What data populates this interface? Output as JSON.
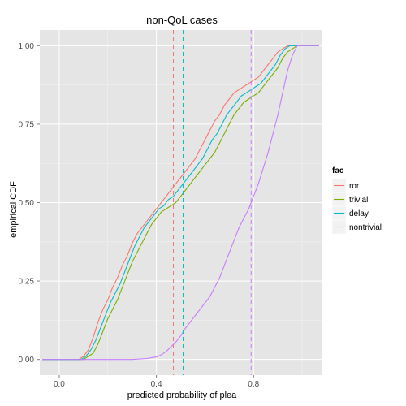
{
  "chart_data": {
    "type": "line",
    "title": "non-QoL cases",
    "xlabel": "predicted probability of plea",
    "ylabel": "empirical CDF",
    "xlim": [
      -0.08,
      1.08
    ],
    "ylim": [
      -0.05,
      1.05
    ],
    "x_ticks": [
      0.0,
      0.4,
      0.8
    ],
    "x_tick_labels": [
      "0.0",
      "0.4",
      "0.8"
    ],
    "y_ticks": [
      0.0,
      0.25,
      0.5,
      0.75,
      1.0
    ],
    "y_tick_labels": [
      "0.00",
      "0.25",
      "0.50",
      "0.75",
      "1.00"
    ],
    "grid": true,
    "legend_title": "fac",
    "legend_position": "right",
    "background": "#e5e5e5",
    "series": [
      {
        "name": "ror",
        "color": "#f8766d",
        "mean": 0.47,
        "points": [
          [
            -0.07,
            0
          ],
          [
            0.08,
            0
          ],
          [
            0.1,
            0.01
          ],
          [
            0.12,
            0.03
          ],
          [
            0.14,
            0.07
          ],
          [
            0.16,
            0.12
          ],
          [
            0.18,
            0.16
          ],
          [
            0.2,
            0.19
          ],
          [
            0.22,
            0.23
          ],
          [
            0.24,
            0.26
          ],
          [
            0.26,
            0.3
          ],
          [
            0.28,
            0.33
          ],
          [
            0.3,
            0.37
          ],
          [
            0.32,
            0.4
          ],
          [
            0.34,
            0.42
          ],
          [
            0.36,
            0.44
          ],
          [
            0.38,
            0.46
          ],
          [
            0.4,
            0.48
          ],
          [
            0.42,
            0.5
          ],
          [
            0.44,
            0.52
          ],
          [
            0.46,
            0.54
          ],
          [
            0.48,
            0.56
          ],
          [
            0.5,
            0.58
          ],
          [
            0.52,
            0.6
          ],
          [
            0.54,
            0.62
          ],
          [
            0.56,
            0.64
          ],
          [
            0.58,
            0.67
          ],
          [
            0.6,
            0.7
          ],
          [
            0.62,
            0.73
          ],
          [
            0.64,
            0.76
          ],
          [
            0.66,
            0.78
          ],
          [
            0.68,
            0.81
          ],
          [
            0.7,
            0.83
          ],
          [
            0.72,
            0.85
          ],
          [
            0.74,
            0.86
          ],
          [
            0.76,
            0.87
          ],
          [
            0.78,
            0.88
          ],
          [
            0.8,
            0.89
          ],
          [
            0.82,
            0.9
          ],
          [
            0.84,
            0.92
          ],
          [
            0.86,
            0.94
          ],
          [
            0.88,
            0.96
          ],
          [
            0.9,
            0.98
          ],
          [
            0.92,
            0.99
          ],
          [
            0.94,
            1
          ],
          [
            1.07,
            1
          ]
        ]
      },
      {
        "name": "trivial",
        "color": "#7cae00",
        "mean": 0.53,
        "points": [
          [
            -0.07,
            0
          ],
          [
            0.1,
            0
          ],
          [
            0.12,
            0.01
          ],
          [
            0.14,
            0.02
          ],
          [
            0.16,
            0.05
          ],
          [
            0.18,
            0.09
          ],
          [
            0.2,
            0.13
          ],
          [
            0.22,
            0.16
          ],
          [
            0.24,
            0.19
          ],
          [
            0.26,
            0.23
          ],
          [
            0.28,
            0.27
          ],
          [
            0.3,
            0.31
          ],
          [
            0.32,
            0.34
          ],
          [
            0.34,
            0.37
          ],
          [
            0.36,
            0.4
          ],
          [
            0.38,
            0.43
          ],
          [
            0.4,
            0.45
          ],
          [
            0.42,
            0.47
          ],
          [
            0.44,
            0.48
          ],
          [
            0.46,
            0.49
          ],
          [
            0.48,
            0.5
          ],
          [
            0.5,
            0.52
          ],
          [
            0.52,
            0.54
          ],
          [
            0.54,
            0.56
          ],
          [
            0.56,
            0.58
          ],
          [
            0.58,
            0.6
          ],
          [
            0.6,
            0.62
          ],
          [
            0.62,
            0.64
          ],
          [
            0.64,
            0.66
          ],
          [
            0.66,
            0.69
          ],
          [
            0.68,
            0.72
          ],
          [
            0.7,
            0.75
          ],
          [
            0.72,
            0.78
          ],
          [
            0.74,
            0.8
          ],
          [
            0.76,
            0.82
          ],
          [
            0.78,
            0.83
          ],
          [
            0.8,
            0.84
          ],
          [
            0.82,
            0.85
          ],
          [
            0.84,
            0.87
          ],
          [
            0.86,
            0.89
          ],
          [
            0.88,
            0.91
          ],
          [
            0.9,
            0.93
          ],
          [
            0.92,
            0.96
          ],
          [
            0.94,
            0.98
          ],
          [
            0.96,
            0.99
          ],
          [
            0.98,
            1
          ],
          [
            1.07,
            1
          ]
        ]
      },
      {
        "name": "delay",
        "color": "#00bfc4",
        "mean": 0.51,
        "points": [
          [
            -0.07,
            0
          ],
          [
            0.09,
            0
          ],
          [
            0.11,
            0.01
          ],
          [
            0.13,
            0.03
          ],
          [
            0.15,
            0.06
          ],
          [
            0.17,
            0.1
          ],
          [
            0.19,
            0.14
          ],
          [
            0.21,
            0.18
          ],
          [
            0.23,
            0.21
          ],
          [
            0.25,
            0.24
          ],
          [
            0.27,
            0.28
          ],
          [
            0.29,
            0.32
          ],
          [
            0.31,
            0.36
          ],
          [
            0.33,
            0.39
          ],
          [
            0.35,
            0.42
          ],
          [
            0.37,
            0.44
          ],
          [
            0.39,
            0.46
          ],
          [
            0.41,
            0.48
          ],
          [
            0.43,
            0.49
          ],
          [
            0.45,
            0.51
          ],
          [
            0.47,
            0.52
          ],
          [
            0.49,
            0.54
          ],
          [
            0.51,
            0.56
          ],
          [
            0.53,
            0.58
          ],
          [
            0.55,
            0.6
          ],
          [
            0.57,
            0.62
          ],
          [
            0.59,
            0.64
          ],
          [
            0.61,
            0.67
          ],
          [
            0.63,
            0.7
          ],
          [
            0.65,
            0.72
          ],
          [
            0.67,
            0.75
          ],
          [
            0.69,
            0.78
          ],
          [
            0.71,
            0.8
          ],
          [
            0.73,
            0.82
          ],
          [
            0.75,
            0.84
          ],
          [
            0.77,
            0.85
          ],
          [
            0.79,
            0.86
          ],
          [
            0.81,
            0.87
          ],
          [
            0.83,
            0.88
          ],
          [
            0.85,
            0.9
          ],
          [
            0.87,
            0.92
          ],
          [
            0.89,
            0.94
          ],
          [
            0.91,
            0.97
          ],
          [
            0.93,
            0.99
          ],
          [
            0.95,
            1
          ],
          [
            1.07,
            1
          ]
        ]
      },
      {
        "name": "nontrivial",
        "color": "#c77cff",
        "mean": 0.79,
        "points": [
          [
            -0.07,
            0
          ],
          [
            0.3,
            0
          ],
          [
            0.36,
            0.003
          ],
          [
            0.4,
            0.008
          ],
          [
            0.42,
            0.015
          ],
          [
            0.44,
            0.025
          ],
          [
            0.46,
            0.04
          ],
          [
            0.48,
            0.055
          ],
          [
            0.5,
            0.075
          ],
          [
            0.52,
            0.1
          ],
          [
            0.54,
            0.12
          ],
          [
            0.56,
            0.14
          ],
          [
            0.58,
            0.16
          ],
          [
            0.6,
            0.18
          ],
          [
            0.62,
            0.2
          ],
          [
            0.64,
            0.23
          ],
          [
            0.66,
            0.26
          ],
          [
            0.68,
            0.3
          ],
          [
            0.7,
            0.34
          ],
          [
            0.72,
            0.38
          ],
          [
            0.74,
            0.42
          ],
          [
            0.76,
            0.45
          ],
          [
            0.78,
            0.48
          ],
          [
            0.8,
            0.52
          ],
          [
            0.82,
            0.56
          ],
          [
            0.84,
            0.61
          ],
          [
            0.86,
            0.66
          ],
          [
            0.88,
            0.72
          ],
          [
            0.9,
            0.78
          ],
          [
            0.92,
            0.85
          ],
          [
            0.94,
            0.92
          ],
          [
            0.96,
            0.97
          ],
          [
            0.98,
            1
          ],
          [
            1.07,
            1
          ]
        ]
      }
    ]
  }
}
